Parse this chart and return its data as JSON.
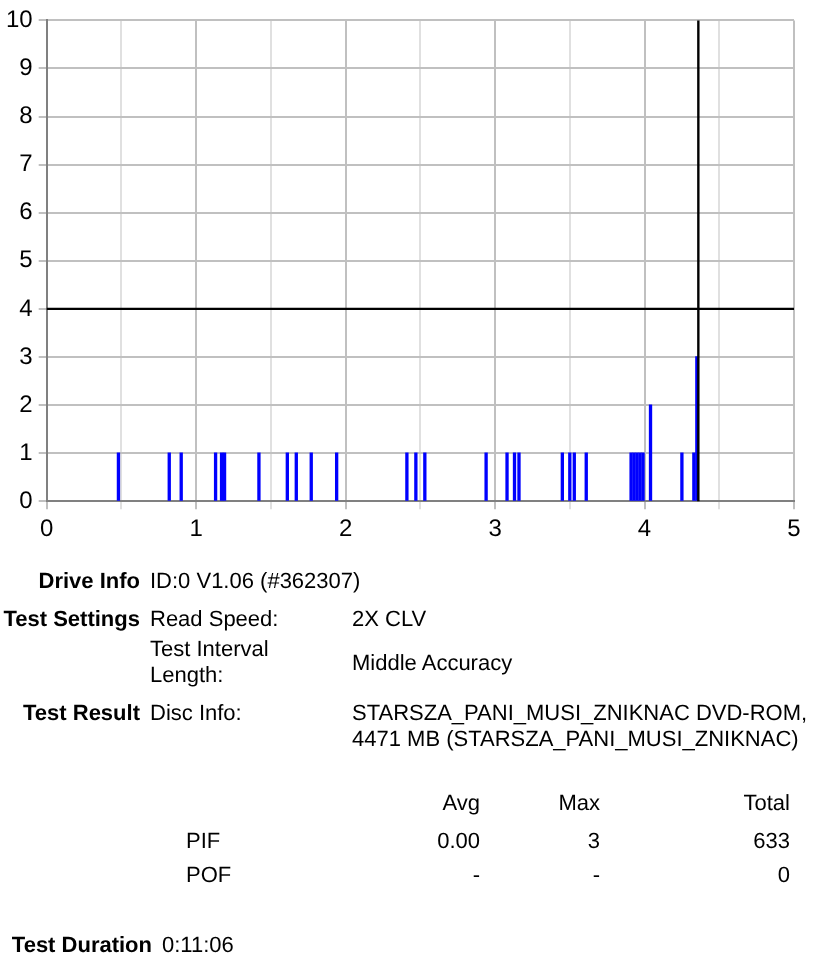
{
  "chart_data": {
    "type": "bar",
    "x": [
      0.48,
      0.82,
      0.9,
      1.13,
      1.17,
      1.19,
      1.42,
      1.61,
      1.67,
      1.77,
      1.94,
      2.41,
      2.47,
      2.53,
      2.94,
      3.08,
      3.13,
      3.16,
      3.45,
      3.5,
      3.53,
      3.61,
      3.91,
      3.93,
      3.95,
      3.97,
      3.99,
      4.04,
      4.25,
      4.33,
      4.35
    ],
    "series": [
      {
        "color": "#0000ff",
        "values": [
          1,
          1,
          1,
          1,
          1,
          1,
          1,
          1,
          1,
          1,
          1,
          1,
          1,
          1,
          1,
          1,
          1,
          1,
          1,
          1,
          1,
          1,
          1,
          1,
          1,
          1,
          1,
          2,
          1,
          1,
          3
        ]
      }
    ],
    "xlim": [
      0,
      5
    ],
    "ylim": [
      0,
      10
    ],
    "xticks": [
      0,
      {
        "value": 0.5,
        "label": null
      },
      1,
      {
        "value": 1.5,
        "label": null
      },
      2,
      {
        "value": 2.5,
        "label": null
      },
      3,
      {
        "value": 3.5,
        "label": null
      },
      4,
      {
        "value": 4.5,
        "label": null
      },
      5
    ],
    "yticks": [
      0,
      1,
      2,
      3,
      4,
      5,
      6,
      7,
      8,
      9,
      10
    ],
    "grid": true,
    "legend": false,
    "ref_lines": [
      {
        "axis": "y",
        "value": 4,
        "color": "#000000"
      },
      {
        "axis": "x",
        "value": 4.36,
        "color": "#000000"
      }
    ],
    "annotations": [
      "Drive Info",
      "ID:0 V1.06 (#362307)",
      "Test Settings",
      "Read Speed:",
      "2X CLV",
      "Test Interval Length:",
      "Middle Accuracy",
      "Test Result",
      "Disc Info:",
      "STARSZA_PANI_MUSI_ZNIKNAC DVD-ROM, 4471 MB (STARSZA_PANI_MUSI_ZNIKNAC)",
      "Avg",
      "Max",
      "Total",
      "PIF",
      "0.00",
      "3",
      "633",
      "POF",
      "-",
      "-",
      "0",
      "Test Duration",
      "0:11:06"
    ]
  }
}
